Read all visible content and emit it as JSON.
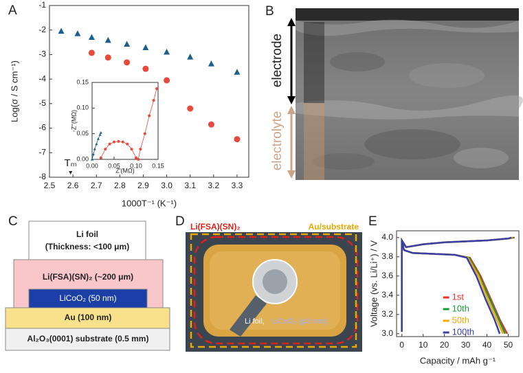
{
  "panel_labels": [
    "A",
    "B",
    "C",
    "D",
    "E"
  ],
  "chart_data": [
    {
      "type": "scatter",
      "xlabel": "1000T⁻¹ (K⁻¹)",
      "ylabel": "Log(σ / S cm⁻¹)",
      "xlim": [
        2.5,
        3.35
      ],
      "ylim": [
        -8,
        -1
      ],
      "xticks": [
        2.5,
        2.6,
        2.7,
        2.8,
        2.9,
        {
          "value": 3,
          "label": "3.0"
        },
        3.1,
        3.2,
        3.3
      ],
      "yticks": [
        -8,
        -7,
        -6,
        -5,
        -4,
        -3,
        -2,
        -1
      ],
      "annotations": [
        {
          "text": "Tₘ",
          "x": 2.59
        }
      ],
      "series": [
        {
          "color": "#1d5f8e",
          "marker": "triangle",
          "x": [
            2.55,
            2.62,
            2.68,
            2.75,
            2.83,
            2.91,
            3.0,
            3.1,
            3.19,
            3.3
          ],
          "values": [
            -2.05,
            -2.15,
            -2.3,
            -2.42,
            -2.58,
            -2.72,
            -2.9,
            -3.1,
            -3.38,
            -3.72
          ]
        },
        {
          "color": "#e8493c",
          "marker": "circle",
          "x": [
            2.68,
            2.75,
            2.83,
            2.91,
            3.0,
            3.1,
            3.19,
            3.3
          ],
          "values": [
            -2.93,
            -3.12,
            -3.32,
            -3.58,
            -4.05,
            -5.2,
            -5.85,
            -6.45
          ]
        }
      ]
    },
    {
      "type": "line",
      "xlabel": "Z'(MΩ)",
      "ylabel": "-Z''(MΩ)",
      "xlim": [
        0,
        0.15
      ],
      "ylim": [
        0,
        0.15
      ],
      "xticks": [
        {
          "value": 0,
          "label": "0.00"
        },
        {
          "value": 0.05,
          "label": "0.05"
        },
        {
          "value": 0.1,
          "label": "0.10"
        },
        {
          "value": 0.15,
          "label": "0.15"
        }
      ],
      "yticks": [
        {
          "value": 0,
          "label": "0.00"
        },
        {
          "value": 0.05,
          "label": "0.05"
        },
        {
          "value": 0.1,
          "label": "0.10"
        },
        {
          "value": 0.15,
          "label": "0.15"
        }
      ],
      "series": [
        {
          "color": "#1d5f8e",
          "marker": "triangle",
          "x": [
            0,
            0.003,
            0.006,
            0.01,
            0.014,
            0.018,
            0.02
          ],
          "values": [
            0,
            0.01,
            0.02,
            0.03,
            0.04,
            0.048,
            0.052
          ]
        },
        {
          "color": "#e8493c",
          "marker": "circle",
          "x": [
            0.02,
            0.03,
            0.04,
            0.05,
            0.06,
            0.07,
            0.08,
            0.09,
            0.1,
            0.105,
            0.11,
            0.12,
            0.13,
            0.14,
            0.147
          ],
          "values": [
            0.003,
            0.02,
            0.03,
            0.034,
            0.035,
            0.034,
            0.03,
            0.02,
            0.003,
            0,
            0.02,
            0.05,
            0.085,
            0.115,
            0.138
          ]
        }
      ]
    },
    {
      "type": "line",
      "xlabel": "Capacity / mAh g⁻¹",
      "ylabel": "Voltage (vs. Li/Li⁺) / V",
      "xlim": [
        -2.5,
        55
      ],
      "ylim": [
        2.97,
        4.07
      ],
      "xticks": [
        0,
        10,
        20,
        30,
        40,
        50
      ],
      "yticks": [
        {
          "value": 3,
          "label": "3.0"
        },
        3.2,
        3.4,
        3.6,
        3.8,
        {
          "value": 4,
          "label": "4.0"
        }
      ],
      "legend": "right",
      "series": [
        {
          "name": "1st",
          "color": "#e8312a",
          "x": [
            0,
            0,
            2,
            10,
            20,
            30,
            40,
            50,
            53,
            null,
            0,
            1,
            5,
            15,
            25,
            32,
            37,
            42,
            46,
            49.5
          ],
          "values": [
            3.02,
            3.97,
            3.9,
            3.93,
            3.95,
            3.96,
            3.97,
            3.99,
            4.0,
            null,
            3.97,
            3.87,
            3.84,
            3.83,
            3.82,
            3.79,
            3.6,
            3.35,
            3.15,
            3.0
          ]
        },
        {
          "name": "10th",
          "color": "#1a9a3a",
          "x": [
            0,
            0,
            2,
            10,
            20,
            30,
            40,
            50,
            52.5,
            null,
            0,
            1,
            5,
            15,
            25,
            31.5,
            36.5,
            41.5,
            45.5,
            48.5
          ],
          "values": [
            3.02,
            3.97,
            3.9,
            3.93,
            3.95,
            3.96,
            3.97,
            3.99,
            4.0,
            null,
            3.97,
            3.87,
            3.84,
            3.83,
            3.82,
            3.79,
            3.6,
            3.35,
            3.15,
            3.0
          ]
        },
        {
          "name": "50th",
          "color": "#f5a800",
          "x": [
            0,
            0,
            2,
            10,
            20,
            30,
            40,
            50,
            52,
            null,
            0,
            1,
            5,
            15,
            25,
            31,
            36,
            40.5,
            44.5,
            47.5
          ],
          "values": [
            3.02,
            3.97,
            3.9,
            3.93,
            3.95,
            3.96,
            3.97,
            3.99,
            4.0,
            null,
            3.97,
            3.87,
            3.84,
            3.83,
            3.82,
            3.79,
            3.6,
            3.35,
            3.15,
            3.0
          ]
        },
        {
          "name": "100th",
          "color": "#3a3ea8",
          "x": [
            0,
            0,
            2,
            10,
            20,
            30,
            40,
            50,
            51.5,
            null,
            0,
            1,
            5,
            15,
            25,
            30.5,
            35,
            39.5,
            43.5,
            46
          ],
          "values": [
            3.02,
            3.97,
            3.9,
            3.93,
            3.95,
            3.96,
            3.97,
            3.99,
            4.0,
            null,
            3.97,
            3.87,
            3.84,
            3.83,
            3.82,
            3.79,
            3.6,
            3.35,
            3.15,
            3.0
          ]
        }
      ]
    }
  ],
  "image_b": {
    "electrode": "electrode",
    "electrolyte": "electrolyte"
  },
  "diagram_c": {
    "li_foil": "Li foil",
    "li_foil_thickness": "(Thickness: <100 μm)",
    "electrolyte": "Li(FSA)(SN)₂ (~200 μm)",
    "cathode": "LiCoO₂ (50 nm)",
    "current_collector": "Au (100 nm)",
    "substrate": "Al₂O₃(0001) substrate (0.5 mm)"
  },
  "photo_d": {
    "electrolyte": "Li(FSA)(SN)₂",
    "substrate": "Au/substrate",
    "li_foil": "Li foil,",
    "cathode": "LiCoO₂ (φ3 mm)"
  }
}
